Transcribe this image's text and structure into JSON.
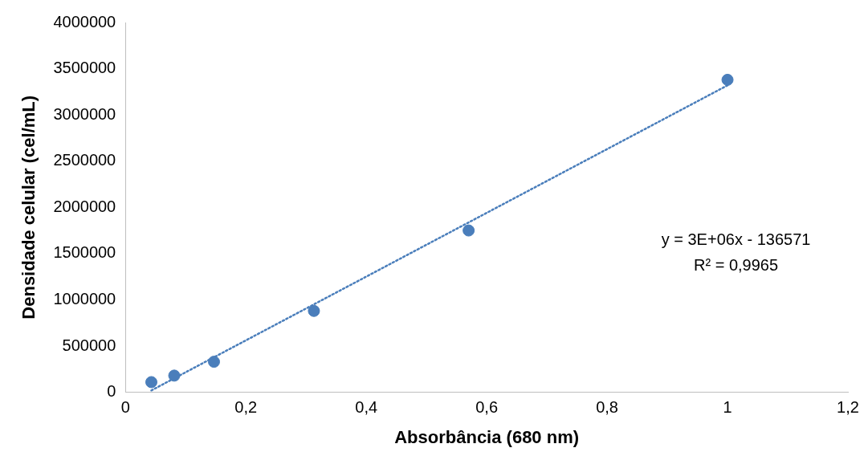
{
  "chart_data": {
    "type": "scatter",
    "xlabel": "Absorbância (680 nm)",
    "ylabel": "Densidade celular (cel/mL)",
    "xlim": [
      0,
      1.2
    ],
    "xticks": [
      0,
      {
        "value": 0.2,
        "label": "0,2"
      },
      {
        "value": 0.4,
        "label": "0,4"
      },
      {
        "value": 0.6,
        "label": "0,6"
      },
      {
        "value": 0.8,
        "label": "0,8"
      },
      1,
      {
        "value": 1.2,
        "label": "1,2"
      }
    ],
    "ylim": [
      0,
      4000000
    ],
    "yticks": [
      0,
      500000,
      1000000,
      1500000,
      2000000,
      2500000,
      3000000,
      3500000,
      4000000
    ],
    "grid": false,
    "legend": false,
    "series": [
      {
        "type": "scatter",
        "color": "#4a7ebb",
        "marker": "circle",
        "x": [
          0.043,
          0.081,
          0.147,
          0.313,
          0.57,
          1.0
        ],
        "values": [
          110000,
          180000,
          330000,
          880000,
          1750000,
          3380000
        ]
      },
      {
        "type": "line",
        "color": "#4a7ebb",
        "marker": "none",
        "line_style": "dotted",
        "x": [
          0.043,
          1.0
        ],
        "values": [
          20000,
          3320000
        ]
      }
    ],
    "annotations": [
      "y = 3E+06x - 136571",
      "R² = 0,9965"
    ]
  }
}
